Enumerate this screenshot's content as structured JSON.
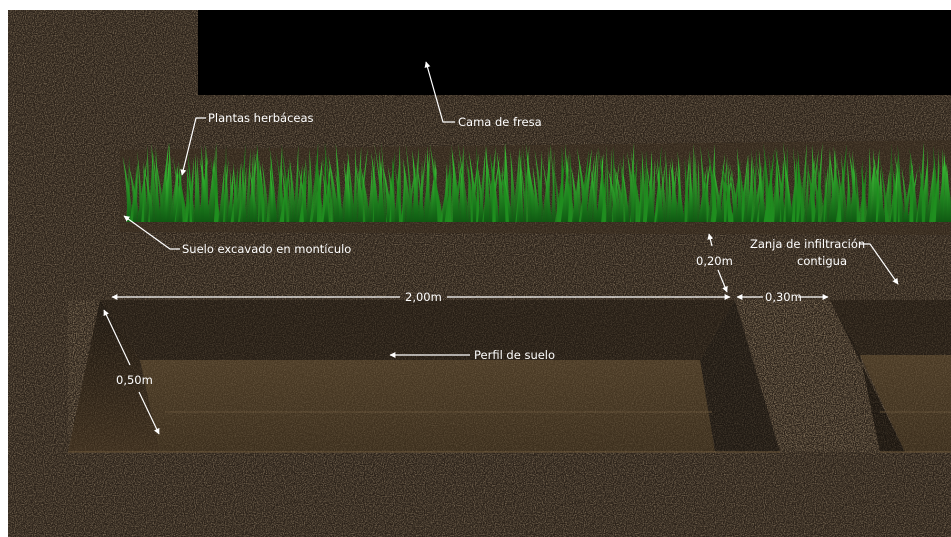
{
  "labels": {
    "plantas": "Plantas herbáceas",
    "cama": "Cama de fresa",
    "suelo": "Suelo excavado en montículo",
    "zanja_line1": "Zanja de infiltración",
    "zanja_line2": "contigua",
    "perfil": "Perfil de suelo"
  },
  "dimensions": {
    "width_main": "2,00m",
    "width_secondary": "0,30m",
    "height_mound": "0,20m",
    "depth": "0,50m"
  },
  "colors": {
    "background": "#000000",
    "soil": "#2a2119",
    "soil_dark": "#1c1611",
    "soil_light": "#4a3a26",
    "plants": "#2fb52a",
    "annotation": "#ffffff"
  }
}
